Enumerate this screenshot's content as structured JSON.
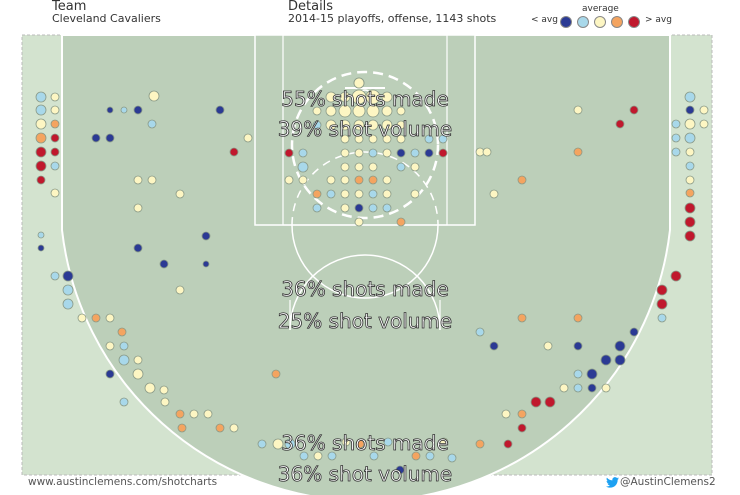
{
  "header": {
    "team_title": "Team",
    "team_name": "Cleveland Cavaliers",
    "details_title": "Details",
    "details_text": "2014-15 playoffs, offense, 1143 shots"
  },
  "legend": {
    "title": "average",
    "below": "< avg",
    "above": "> avg",
    "colors": [
      "#2b3a94",
      "#a8d8ea",
      "#fdf6c3",
      "#f4a460",
      "#c0182d"
    ]
  },
  "chart_data": {
    "type": "scatter",
    "title": "",
    "description_fields": [
      "region stat labels"
    ],
    "colors": {
      "court": "#bccfb9",
      "floor": "#d3e3cf",
      "lines": "#ffffff",
      "dark_blue": "#2b3a94",
      "light_blue": "#a8d8ea",
      "pale_yellow": "#fdf6c3",
      "orange": "#f4a460",
      "dark_red": "#c0182d"
    },
    "zones": [
      {
        "name": "paint",
        "made_label": "55% shots made",
        "volume_label": "39% shot volume"
      },
      {
        "name": "midrange",
        "made_label": "36% shots made",
        "volume_label": "25% shot volume"
      },
      {
        "name": "three-point",
        "made_label": "36% shots made",
        "volume_label": "36% shot volume"
      }
    ]
  },
  "footer": {
    "url": "www.austinclemens.com/shotcharts",
    "twitter": "@AustinClemens2"
  }
}
